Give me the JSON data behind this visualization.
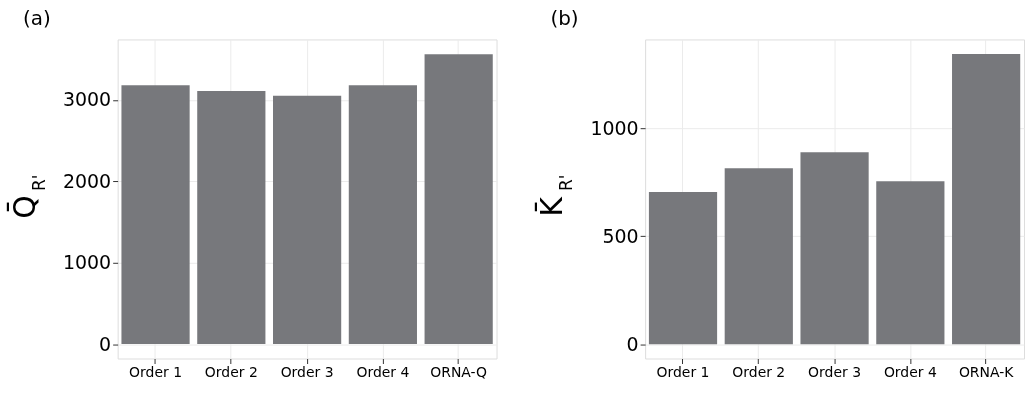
{
  "chart_data": [
    {
      "type": "bar",
      "title": "(a)",
      "ylabel": "Q̄$_{R'}$",
      "categories": [
        "Order 1",
        "Order 2",
        "Order 3",
        "Order 4",
        "ORNA-Q"
      ],
      "values": [
        3180,
        3110,
        3050,
        3180,
        3560
      ],
      "color": "#77787c",
      "ylim": [
        -177,
        3743
      ],
      "yticks": [
        0,
        1000,
        2000,
        3000
      ],
      "grid": true
    },
    {
      "type": "bar",
      "title": "(b)",
      "ylabel": "K̄$_{R'}$",
      "categories": [
        "Order 1",
        "Order 2",
        "Order 3",
        "Order 4",
        "ORNA-K"
      ],
      "values": [
        705,
        815,
        890,
        755,
        1345
      ],
      "color": "#77787c",
      "ylim": [
        -66,
        1412
      ],
      "yticks": [
        0,
        500,
        1000
      ],
      "grid": true
    }
  ]
}
